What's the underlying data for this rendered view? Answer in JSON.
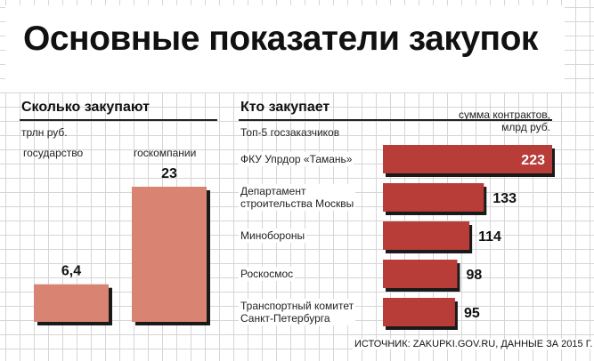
{
  "title": "Основные показатели закупок",
  "left_panel": {
    "heading": "Сколько закупают",
    "unit": "трлн руб."
  },
  "right_panel": {
    "heading": "Кто закупает",
    "subtitle": "Топ-5 госзаказчиков",
    "unit_line1": "сумма контрактов,",
    "unit_line2": "млрд руб."
  },
  "source": "ИСТОЧНИК: ZAKUPKI.GOV.RU, ДАННЫЕ ЗА 2015 Г.",
  "colors": {
    "left_bar": "#d98472",
    "right_bar": "#b83c38",
    "shadow": "#1a1a1a"
  },
  "chart_data": [
    {
      "type": "bar",
      "title": "Сколько закупают",
      "ylabel": "трлн руб.",
      "categories": [
        "государство",
        "госкомпании"
      ],
      "values": [
        6.4,
        23
      ],
      "value_labels": [
        "6,4",
        "23"
      ],
      "ylim": [
        0,
        23
      ]
    },
    {
      "type": "bar",
      "orientation": "horizontal",
      "title": "Кто закупает",
      "subtitle": "Топ-5 госзаказчиков",
      "xlabel": "сумма контрактов, млрд руб.",
      "categories": [
        [
          "ФКУ Упрдор «Тамань»"
        ],
        [
          "Департамент",
          "строительства Москвы"
        ],
        [
          "Минобороны"
        ],
        [
          "Роскосмос"
        ],
        [
          "Транспортный комитет",
          "Санкт-Петербурга"
        ]
      ],
      "values": [
        223,
        133,
        114,
        98,
        95
      ],
      "xlim": [
        0,
        223
      ]
    }
  ]
}
